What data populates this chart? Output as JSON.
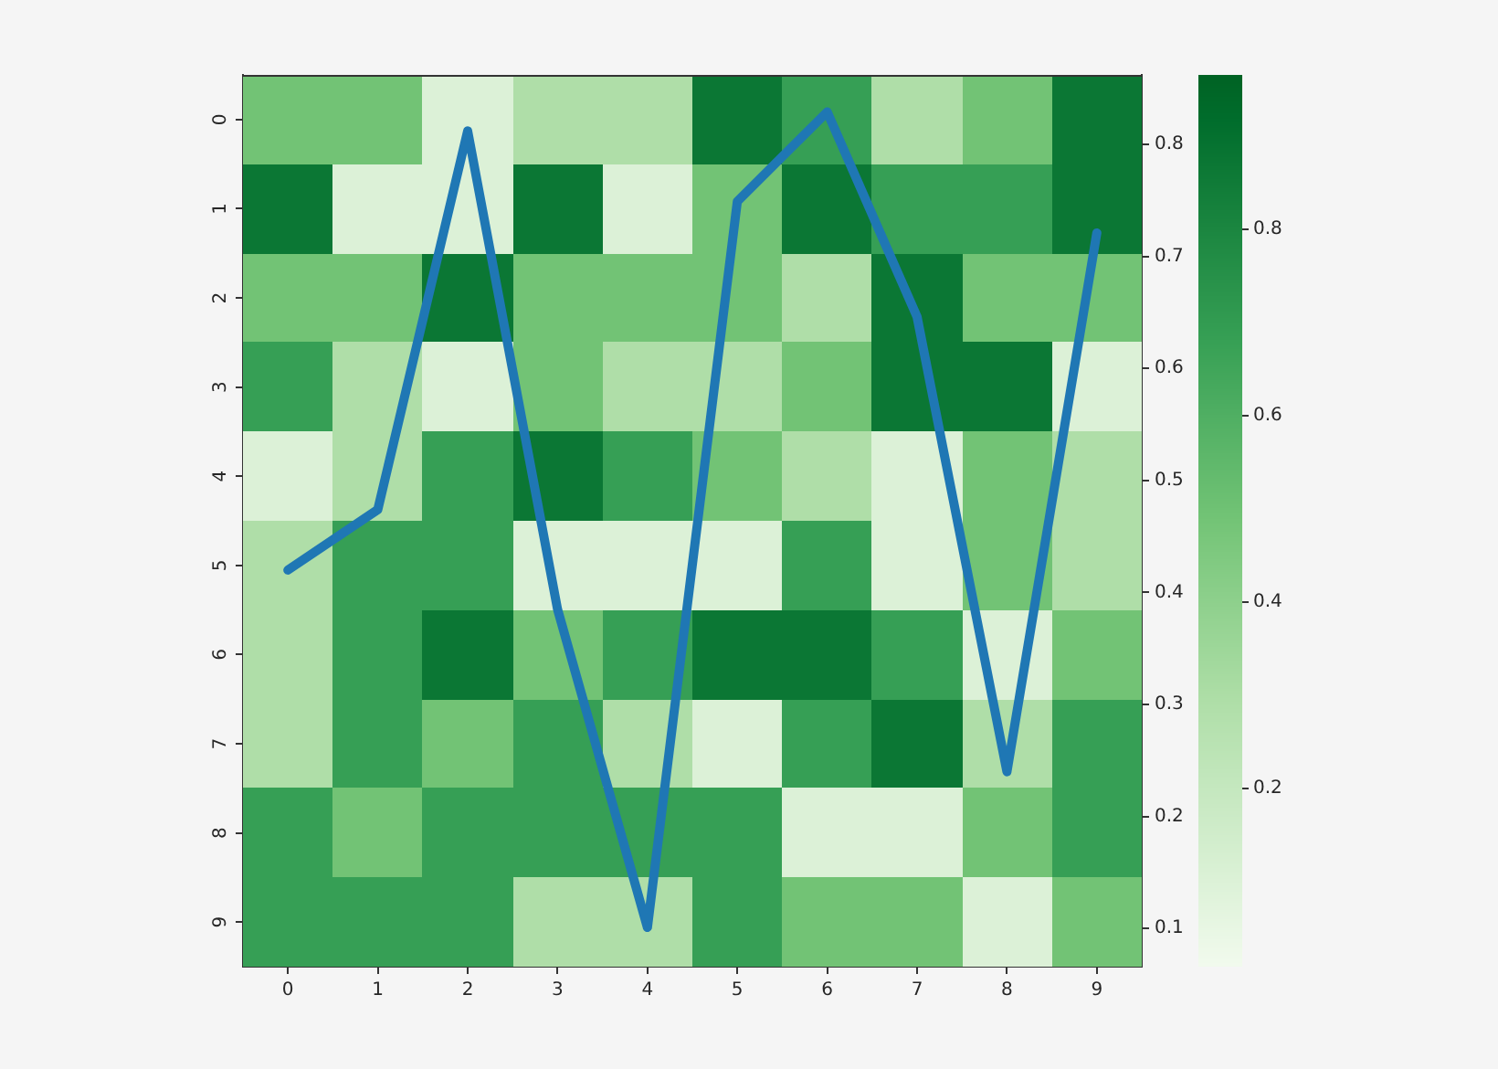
{
  "chart_data": {
    "type": "heatmap",
    "categories": [
      "0",
      "1",
      "2",
      "3",
      "4",
      "5",
      "6",
      "7",
      "8",
      "9"
    ],
    "y_categories": [
      "0",
      "1",
      "2",
      "3",
      "4",
      "5",
      "6",
      "7",
      "8",
      "9"
    ],
    "cells": [
      [
        0.49,
        0.49,
        0.1,
        0.29,
        0.29,
        0.87,
        0.68,
        0.29,
        0.49,
        0.87
      ],
      [
        0.87,
        0.1,
        0.1,
        0.87,
        0.1,
        0.49,
        0.87,
        0.68,
        0.68,
        0.87
      ],
      [
        0.49,
        0.49,
        0.87,
        0.49,
        0.49,
        0.49,
        0.29,
        0.87,
        0.49,
        0.49
      ],
      [
        0.68,
        0.29,
        0.1,
        0.49,
        0.29,
        0.29,
        0.49,
        0.87,
        0.87,
        0.1
      ],
      [
        0.1,
        0.29,
        0.68,
        0.87,
        0.68,
        0.49,
        0.29,
        0.1,
        0.49,
        0.29
      ],
      [
        0.29,
        0.68,
        0.68,
        0.1,
        0.1,
        0.1,
        0.68,
        0.1,
        0.49,
        0.29
      ],
      [
        0.29,
        0.68,
        0.87,
        0.49,
        0.68,
        0.87,
        0.87,
        0.68,
        0.1,
        0.49
      ],
      [
        0.29,
        0.68,
        0.49,
        0.68,
        0.29,
        0.1,
        0.68,
        0.87,
        0.29,
        0.68
      ],
      [
        0.68,
        0.49,
        0.68,
        0.68,
        0.68,
        0.68,
        0.1,
        0.1,
        0.49,
        0.68
      ],
      [
        0.68,
        0.68,
        0.68,
        0.29,
        0.29,
        0.68,
        0.49,
        0.49,
        0.1,
        0.49
      ]
    ],
    "clim": [
      0.008,
      0.964
    ],
    "cticks": [
      0.2,
      0.4,
      0.6,
      0.8
    ],
    "colors": [
      "#dbf1d6",
      "#aedea7",
      "#73c476",
      "#37a055",
      "#0b7734"
    ],
    "series": [
      {
        "type": "line",
        "color": "#1f77b4",
        "axis": "y2",
        "values": [
          0.42,
          0.474,
          0.812,
          0.385,
          0.101,
          0.749,
          0.829,
          0.646,
          0.24,
          0.721
        ]
      }
    ],
    "y2lim": [
      0.066,
      0.862
    ],
    "y2ticks": [
      0.1,
      0.2,
      0.3,
      0.4,
      0.5,
      0.6,
      0.7,
      0.8
    ]
  }
}
